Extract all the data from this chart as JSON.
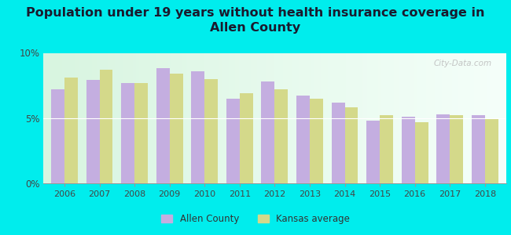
{
  "title": "Population under 19 years without health insurance coverage in\nAllen County",
  "years": [
    2006,
    2007,
    2008,
    2009,
    2010,
    2011,
    2012,
    2013,
    2014,
    2015,
    2016,
    2017,
    2018
  ],
  "allen_county": [
    7.2,
    7.9,
    7.7,
    8.8,
    8.6,
    6.5,
    7.8,
    6.7,
    6.2,
    4.8,
    5.1,
    5.3,
    5.2
  ],
  "kansas_avg": [
    8.1,
    8.7,
    7.7,
    8.4,
    8.0,
    6.9,
    7.2,
    6.5,
    5.8,
    5.2,
    4.7,
    5.2,
    5.0
  ],
  "allen_color": "#c4aee0",
  "kansas_color": "#d4d98a",
  "bg_outer": "#00eded",
  "bg_plot_left": "#d8f5e0",
  "bg_plot_right": "#f5fffa",
  "ylim": [
    0,
    10
  ],
  "yticks": [
    0,
    5,
    10
  ],
  "ytick_labels": [
    "0%",
    "5%",
    "10%"
  ],
  "bar_width": 0.38,
  "legend_allen": "Allen County",
  "legend_kansas": "Kansas average",
  "title_fontsize": 11.5,
  "watermark": "City-Data.com"
}
